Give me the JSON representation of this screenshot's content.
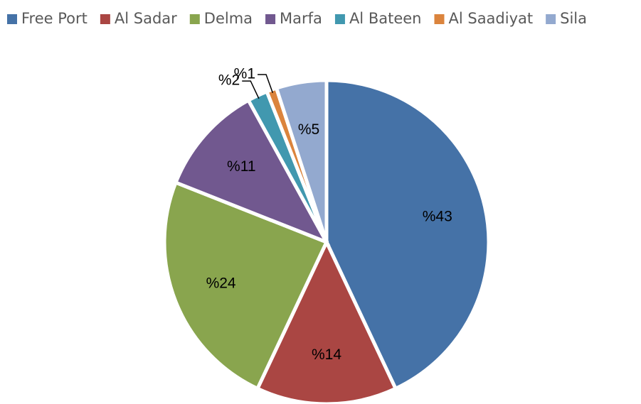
{
  "chart_data": {
    "type": "pie",
    "categories": [
      "Free Port",
      "Al Sadar",
      "Delma",
      "Marfa",
      "Al Bateen",
      "Al Saadiyat",
      "Sila"
    ],
    "values": [
      43,
      14,
      24,
      11,
      2,
      1,
      5
    ],
    "value_labels": [
      "%43",
      "%14",
      "%24",
      "%11",
      "%2",
      "%1",
      "%5"
    ],
    "colors": [
      "#4572a7",
      "#aa4643",
      "#89a54e",
      "#71588f",
      "#4198af",
      "#db843d",
      "#93a9cf"
    ],
    "legend": "top"
  }
}
